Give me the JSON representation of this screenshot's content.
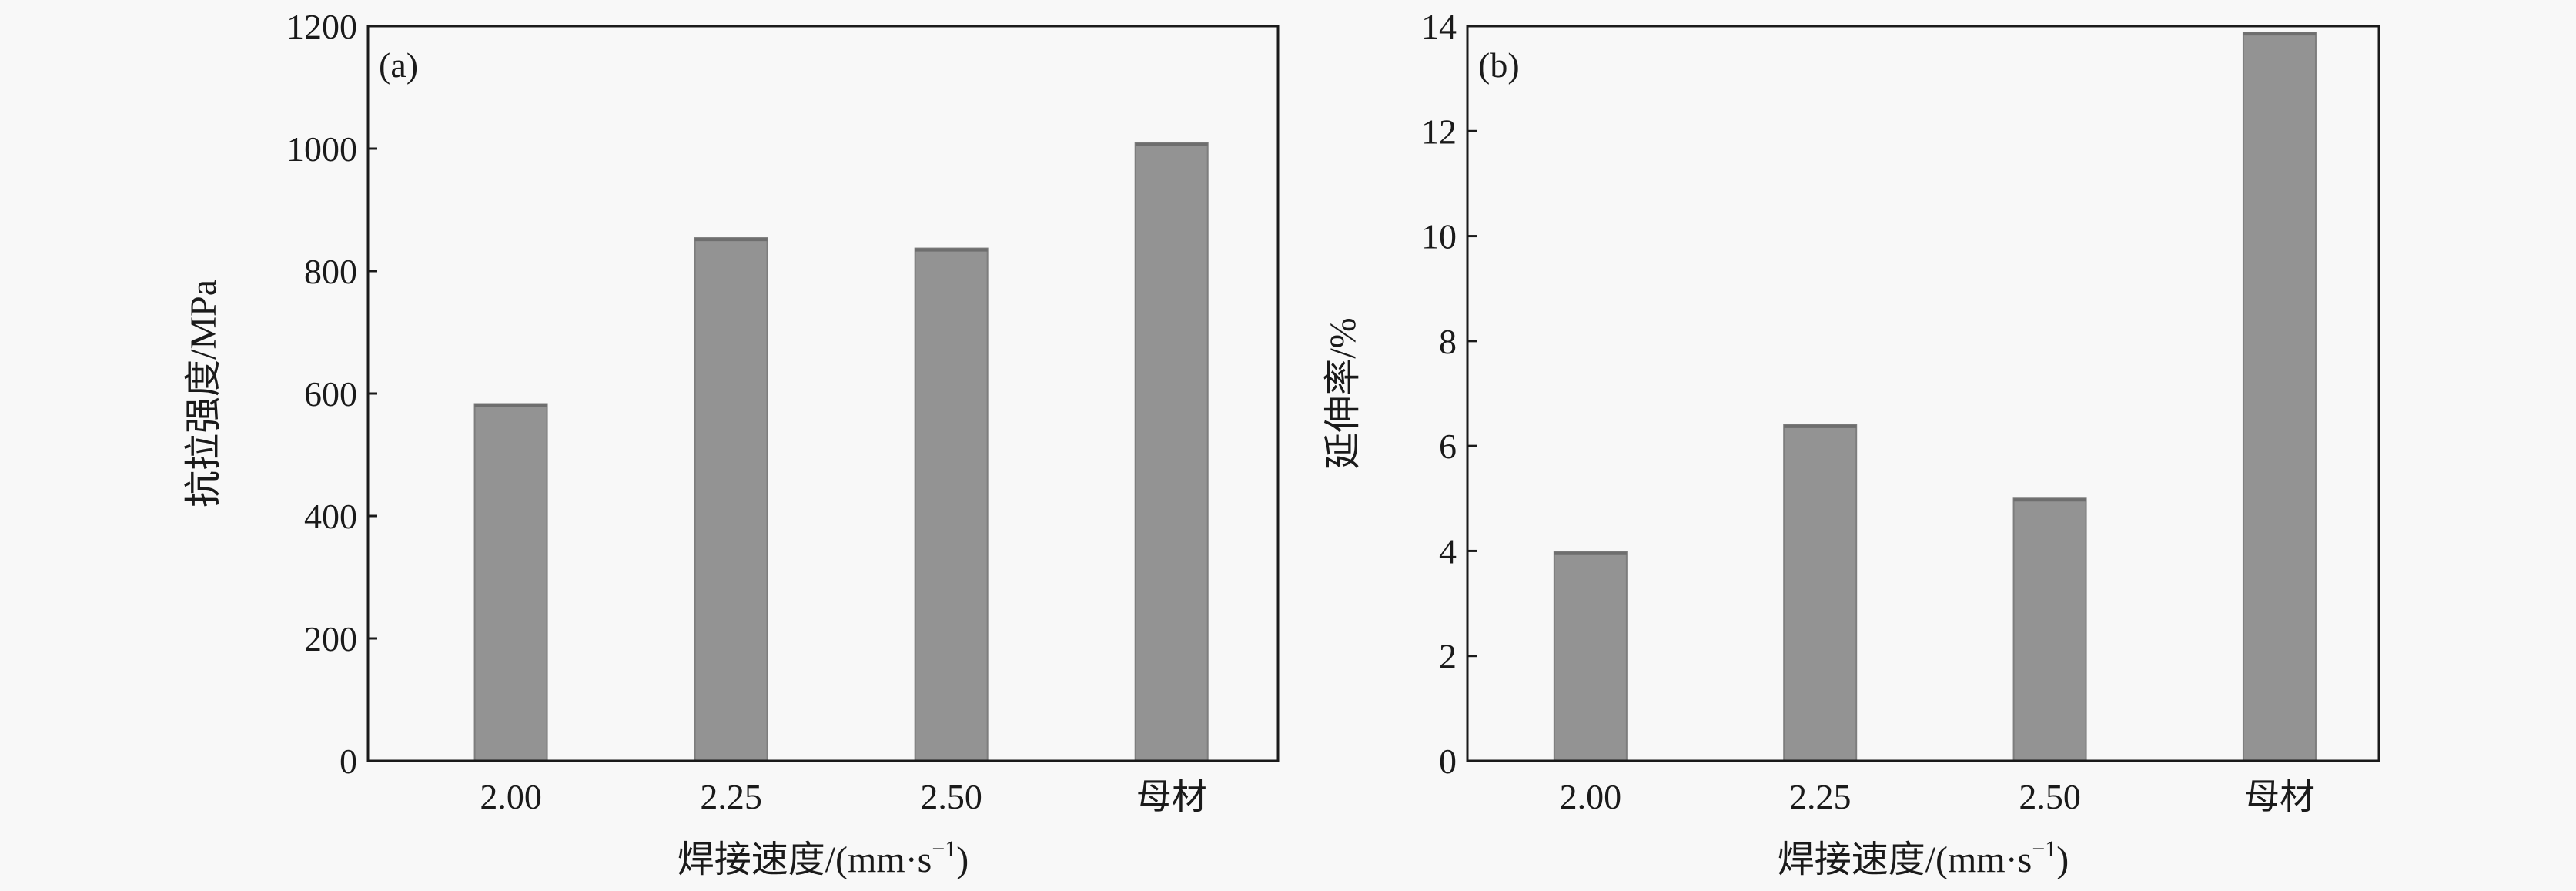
{
  "chart_data": [
    {
      "type": "bar",
      "panel_label": "(a)",
      "categories": [
        "2.00",
        "2.25",
        "2.50",
        "母材"
      ],
      "values": [
        583,
        854,
        837,
        1009
      ],
      "xlabel": "焊接速度/(mm·s",
      "xlabel_sup": "−1",
      "xlabel_tail": ")",
      "ylabel": "抗拉强度/MPa",
      "ylim": [
        0,
        1200
      ],
      "yticks": [
        0,
        200,
        400,
        600,
        800,
        1000,
        1200
      ],
      "grid": false,
      "bar_color": "#939393"
    },
    {
      "type": "bar",
      "panel_label": "(b)",
      "categories": [
        "2.00",
        "2.25",
        "2.50",
        "母材"
      ],
      "values": [
        3.98,
        6.4,
        5.0,
        13.88
      ],
      "xlabel": "焊接速度/(mm·s",
      "xlabel_sup": "−1",
      "xlabel_tail": ")",
      "ylabel": "延伸率/%",
      "ylim": [
        0,
        14
      ],
      "yticks": [
        0,
        2,
        4,
        6,
        8,
        10,
        12,
        14
      ],
      "grid": false,
      "bar_color": "#939393"
    }
  ]
}
